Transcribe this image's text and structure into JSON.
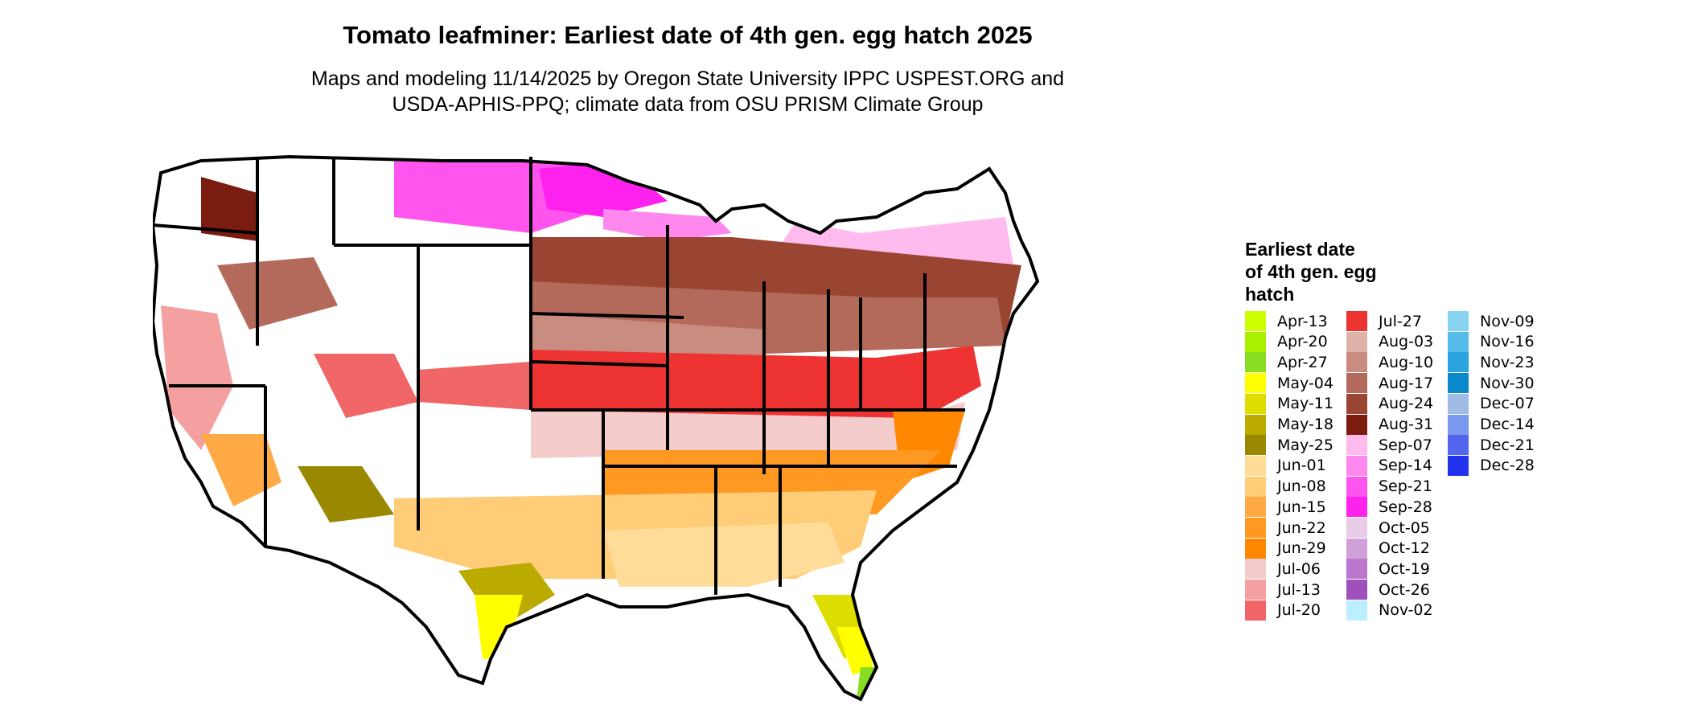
{
  "title": "Tomato leafminer: Earliest date of 4th gen. egg hatch 2025",
  "subtitle_line1": "Maps and modeling 11/14/2025 by Oregon State University IPPC USPEST.ORG and",
  "subtitle_line2": "USDA-APHIS-PPQ; climate data from OSU PRISM Climate Group",
  "legend": {
    "title_lines": [
      "Earliest date",
      "of 4th gen. egg",
      "hatch"
    ],
    "items": [
      {
        "label": "Apr-13",
        "color": "#ccff00"
      },
      {
        "label": "Apr-20",
        "color": "#aaee00"
      },
      {
        "label": "Apr-27",
        "color": "#88dd22"
      },
      {
        "label": "May-04",
        "color": "#ffff00"
      },
      {
        "label": "May-11",
        "color": "#dddd00"
      },
      {
        "label": "May-18",
        "color": "#bbaa00"
      },
      {
        "label": "May-25",
        "color": "#998800"
      },
      {
        "label": "Jun-01",
        "color": "#ffdd99"
      },
      {
        "label": "Jun-08",
        "color": "#ffcc77"
      },
      {
        "label": "Jun-15",
        "color": "#ffaa44"
      },
      {
        "label": "Jun-22",
        "color": "#ff9922"
      },
      {
        "label": "Jun-29",
        "color": "#ff8800"
      },
      {
        "label": "Jul-06",
        "color": "#f4cccc"
      },
      {
        "label": "Jul-13",
        "color": "#f4a0a0"
      },
      {
        "label": "Jul-20",
        "color": "#f06666"
      },
      {
        "label": "Jul-27",
        "color": "#ee3333"
      },
      {
        "label": "Aug-03",
        "color": "#ddb3a8"
      },
      {
        "label": "Aug-10",
        "color": "#c98c80"
      },
      {
        "label": "Aug-17",
        "color": "#b46a5a"
      },
      {
        "label": "Aug-24",
        "color": "#9a4432"
      },
      {
        "label": "Aug-31",
        "color": "#7a1c10"
      },
      {
        "label": "Sep-07",
        "color": "#ffbbee"
      },
      {
        "label": "Sep-14",
        "color": "#ff88ee"
      },
      {
        "label": "Sep-21",
        "color": "#ff55ee"
      },
      {
        "label": "Sep-28",
        "color": "#ff22ee"
      },
      {
        "label": "Oct-05",
        "color": "#e8cce8"
      },
      {
        "label": "Oct-12",
        "color": "#d0a0d8"
      },
      {
        "label": "Oct-19",
        "color": "#bb77cc"
      },
      {
        "label": "Oct-26",
        "color": "#a050bb"
      },
      {
        "label": "Nov-02",
        "color": "#bbeeff"
      },
      {
        "label": "Nov-09",
        "color": "#88d4f0"
      },
      {
        "label": "Nov-16",
        "color": "#55bbe8"
      },
      {
        "label": "Nov-23",
        "color": "#2aa4dd"
      },
      {
        "label": "Nov-30",
        "color": "#0a88cc"
      },
      {
        "label": "Dec-07",
        "color": "#a0bbe4"
      },
      {
        "label": "Dec-14",
        "color": "#7a99ee"
      },
      {
        "label": "Dec-21",
        "color": "#5566ee"
      },
      {
        "label": "Dec-28",
        "color": "#2233ee"
      }
    ]
  },
  "map_palette": {
    "no_data": "#ffffff",
    "border": "#000000"
  }
}
